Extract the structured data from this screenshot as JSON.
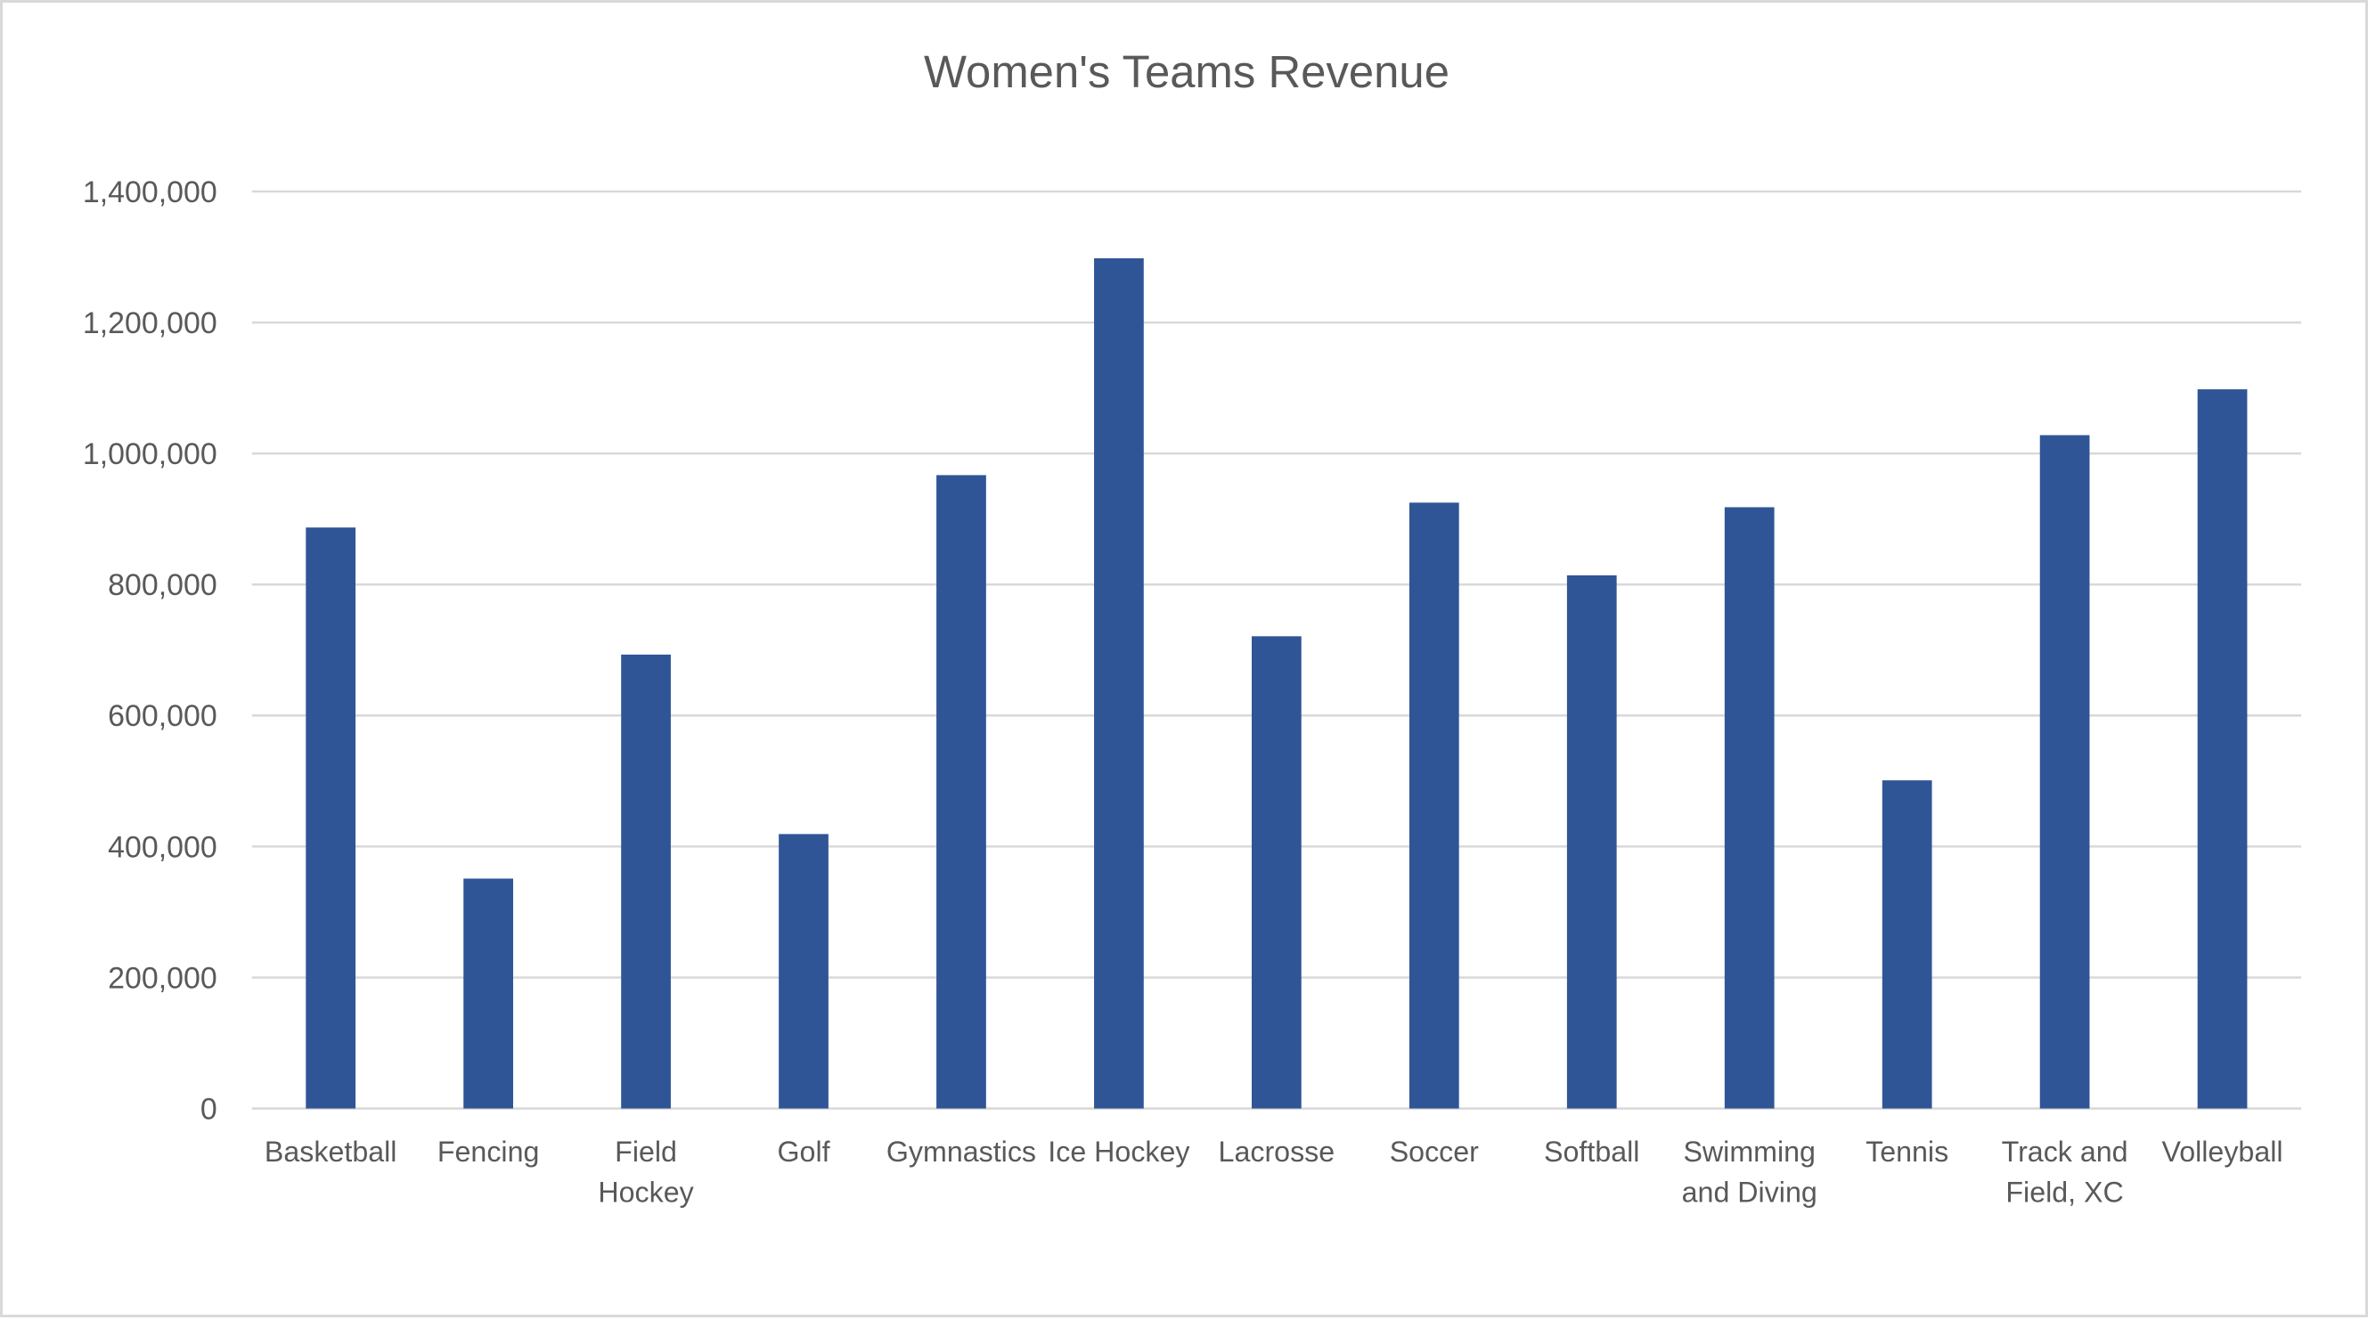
{
  "chart_data": {
    "type": "bar",
    "title": "Women's Teams Revenue",
    "xlabel": "",
    "ylabel": "",
    "categories": [
      "Basketball",
      "Fencing",
      "Field Hockey",
      "Golf",
      "Gymnastics",
      "Ice Hockey",
      "Lacrosse",
      "Soccer",
      "Softball",
      "Swimming and Diving",
      "Tennis",
      "Track and Field, XC",
      "Volleyball"
    ],
    "category_label_lines": [
      [
        "Basketball"
      ],
      [
        "Fencing"
      ],
      [
        "Field",
        "Hockey"
      ],
      [
        "Golf"
      ],
      [
        "Gymnastics"
      ],
      [
        "Ice Hockey"
      ],
      [
        "Lacrosse"
      ],
      [
        "Soccer"
      ],
      [
        "Softball"
      ],
      [
        "Swimming",
        "and Diving"
      ],
      [
        "Tennis"
      ],
      [
        "Track and",
        "Field, XC"
      ],
      [
        "Volleyball"
      ]
    ],
    "values": [
      887000,
      351000,
      693000,
      419000,
      967000,
      1298000,
      721000,
      925000,
      814000,
      918000,
      501000,
      1028000,
      1098000
    ],
    "ylim": [
      0,
      1400000
    ],
    "yticks": [
      0,
      200000,
      400000,
      600000,
      800000,
      1000000,
      1200000,
      1400000
    ],
    "ytick_labels": [
      "0",
      "200,000",
      "400,000",
      "600,000",
      "800,000",
      "1,000,000",
      "1,200,000",
      "1,400,000"
    ],
    "grid": true,
    "legend": "none",
    "bar_color": "#2F5597",
    "gridline_color": "#D9D9D9",
    "text_color": "#595959"
  }
}
